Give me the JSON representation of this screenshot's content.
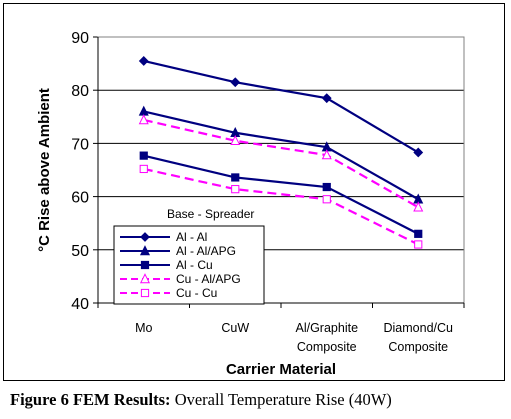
{
  "caption": {
    "label": "Figure 6 FEM Results:",
    "text": "Overall Temperature Rise (40W)"
  },
  "chart_data": {
    "type": "line",
    "title": "",
    "xlabel": "Carrier Material",
    "ylabel": "°C Rise above Ambient",
    "ylim": [
      40,
      90
    ],
    "yticks": [
      40,
      50,
      60,
      70,
      80,
      90
    ],
    "grid": true,
    "categories": [
      [
        "Mo"
      ],
      [
        "CuW"
      ],
      [
        "Al/Graphite",
        "Composite"
      ],
      [
        "Diamond/Cu",
        "Composite"
      ]
    ],
    "legend": {
      "title": "Base - Spreader",
      "placement": "lower-left"
    },
    "series": [
      {
        "name": "Al - Al",
        "values": [
          85.5,
          81.5,
          78.5,
          68.3
        ],
        "color": "#000080",
        "marker": "diamond",
        "dashed": false
      },
      {
        "name": "Al - Al/APG",
        "values": [
          76.0,
          72.0,
          69.3,
          59.5
        ],
        "color": "#000080",
        "marker": "triangle",
        "dashed": false
      },
      {
        "name": "Al - Cu",
        "values": [
          67.7,
          63.6,
          61.8,
          53.0
        ],
        "color": "#000080",
        "marker": "square",
        "dashed": false
      },
      {
        "name": "Cu - Al/APG",
        "values": [
          74.4,
          70.5,
          67.8,
          58.0
        ],
        "color": "#ff00ff",
        "marker": "triangle-open",
        "dashed": true
      },
      {
        "name": "Cu - Cu",
        "values": [
          65.2,
          61.4,
          59.5,
          51.0
        ],
        "color": "#ff00ff",
        "marker": "square-open",
        "dashed": true
      }
    ]
  }
}
